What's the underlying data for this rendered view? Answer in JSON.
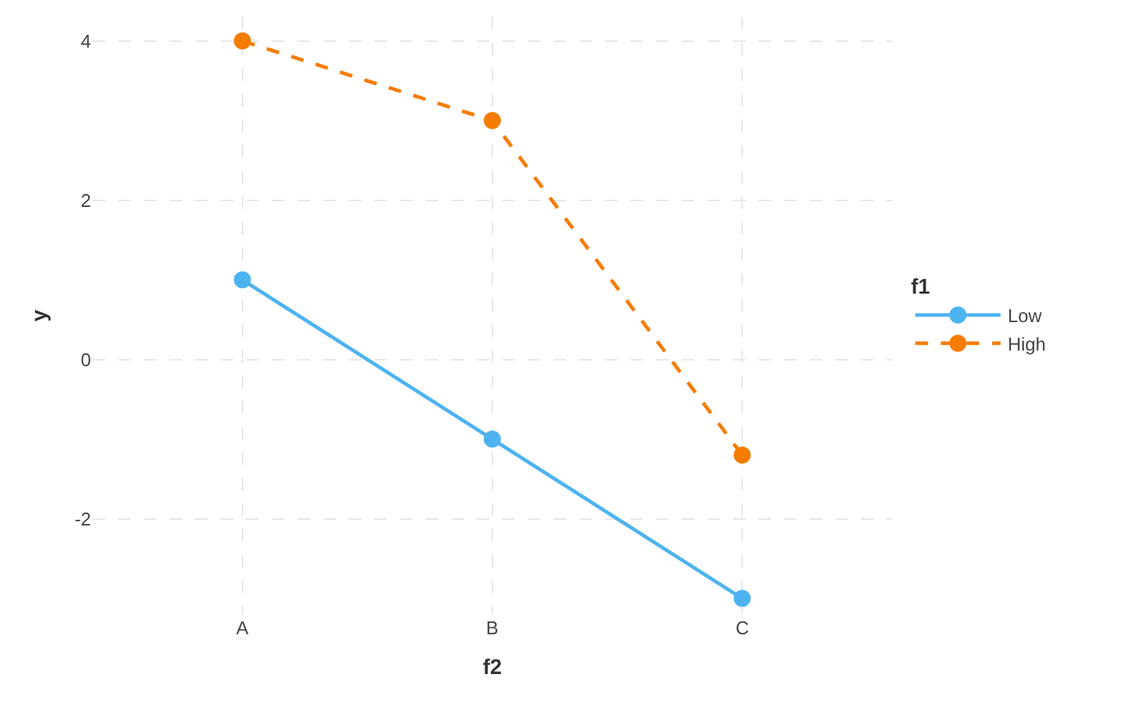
{
  "chart_data": {
    "type": "line",
    "xlabel": "f2",
    "ylabel": "y",
    "legend_title": "f1",
    "categories": [
      "A",
      "B",
      "C"
    ],
    "series": [
      {
        "name": "Low",
        "color": "#4db3f0",
        "values": [
          1,
          -1,
          -3
        ],
        "line_style": "solid"
      },
      {
        "name": "High",
        "color": "#f57c00",
        "values": [
          4,
          3,
          -1.2
        ],
        "line_style": "dashed"
      }
    ],
    "ylim": [
      -3.2,
      4.3
    ],
    "yticks": [
      -2,
      0,
      2,
      4
    ],
    "grid": true,
    "legend": "right",
    "marker": "circle"
  }
}
